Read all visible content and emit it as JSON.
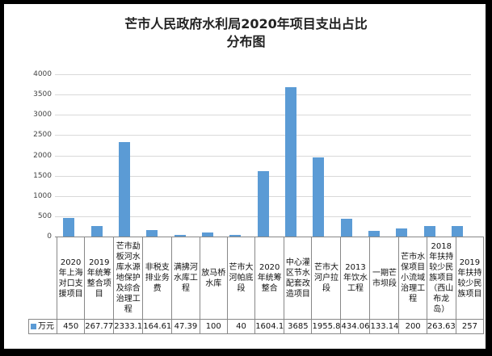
{
  "title_line1": "芒市人民政府水利局2020年项目支出占比",
  "title_line2": "分布图",
  "colors": {
    "bar": "#5b9bd5",
    "grid": "#d9d9d9",
    "border": "#000000"
  },
  "legend": {
    "icon": "square-swatch-icon",
    "label": "万元"
  },
  "y_ticks": [
    "4000",
    "3500",
    "3000",
    "2500",
    "2000",
    "1500",
    "1000",
    "500",
    "0"
  ],
  "chart_data": {
    "type": "bar",
    "title": "芒市人民政府水利局2020年项目支出占比分布图",
    "xlabel": "",
    "ylabel": "",
    "ylim": [
      0,
      4000
    ],
    "y_ticks": [
      0,
      500,
      1000,
      1500,
      2000,
      2500,
      3000,
      3500,
      4000
    ],
    "grid": true,
    "legend_position": "data-table-left",
    "categories": [
      "2020年上海对口支援项目",
      "2019年统筹整合项目",
      "芒市勐板河水库水源地保护及综合治理工程",
      "非税支排业务费",
      "满拂河水库工程",
      "放马桥水库",
      "芒市大河帕底段",
      "2020年统筹整合",
      "中心灌区节水配套改造项目",
      "芒市大河户拉段",
      "2013年饮水工程",
      "一期芒市坝段",
      "芒市水保项目小流域治理工程",
      "2018年扶持较少民族项目（西山布龙岛）",
      "2019年扶持较少民族项目"
    ],
    "series": [
      {
        "name": "万元",
        "values": [
          450,
          267.77,
          2333.1,
          164.61,
          47.39,
          100,
          40,
          1604.1,
          3685,
          1955.8,
          434.06,
          133.14,
          200,
          263.63,
          257
        ],
        "display": [
          "450",
          "267.77",
          "2333.1",
          "164.61",
          "47.39",
          "100",
          "40",
          "1604.1",
          "3685",
          "1955.8",
          "434.06",
          "133.14",
          "200",
          "263.63",
          "257"
        ]
      }
    ]
  }
}
